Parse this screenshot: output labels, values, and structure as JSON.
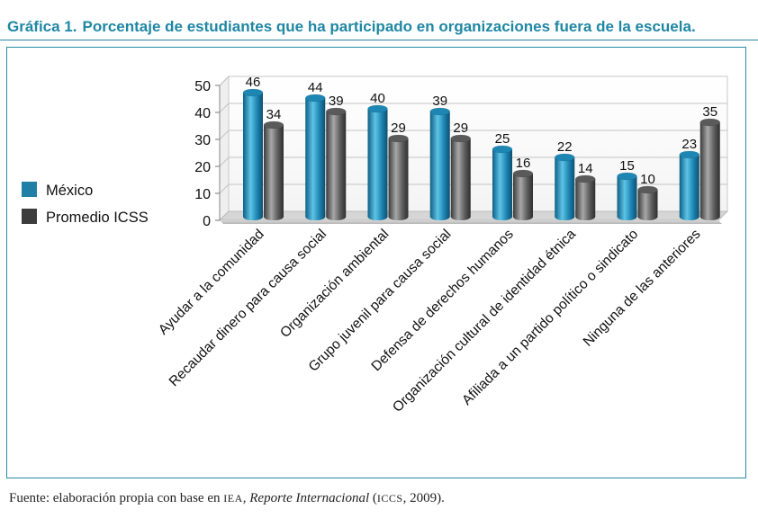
{
  "title": {
    "prefix": "Gráfica 1.",
    "text": "Porcentaje de estudiantes que ha participado en organizaciones fuera de la escuela."
  },
  "source": {
    "text_before": "Fuente: elaboración propia con base en ",
    "org": "IEA",
    "comma": ", ",
    "report": "Reporte Internacional",
    "paren_open": " (",
    "study": "ICCS",
    "year_part": ", 2009)."
  },
  "colors": {
    "accent": "#2a8aa6",
    "mexico": "#1e86b3",
    "icss": "#5a5a5a",
    "legend_mexico": "#1f7fa6",
    "legend_icss": "#3c3c3c"
  },
  "chart_data": {
    "type": "bar",
    "ylim": [
      0,
      50
    ],
    "yticks": [
      "0",
      "10",
      "20",
      "30",
      "40",
      "50"
    ],
    "categories": [
      "Ayudar a la comunidad",
      "Recaudar dinero para causa social",
      "Organización ambiental",
      "Grupo juvenil para causa social",
      "Defensa de derechos humanos",
      "Organización cultural de identidad étnica",
      "Afiliada a un partido político o sindicato",
      "Ninguna de las anteriores"
    ],
    "series": [
      {
        "name": "México",
        "values": [
          46,
          44,
          40,
          39,
          25,
          22,
          15,
          23
        ]
      },
      {
        "name": "Promedio ICSS",
        "values": [
          34,
          39,
          29,
          29,
          16,
          14,
          10,
          35
        ]
      }
    ],
    "grid": true,
    "legend_position": "left"
  }
}
